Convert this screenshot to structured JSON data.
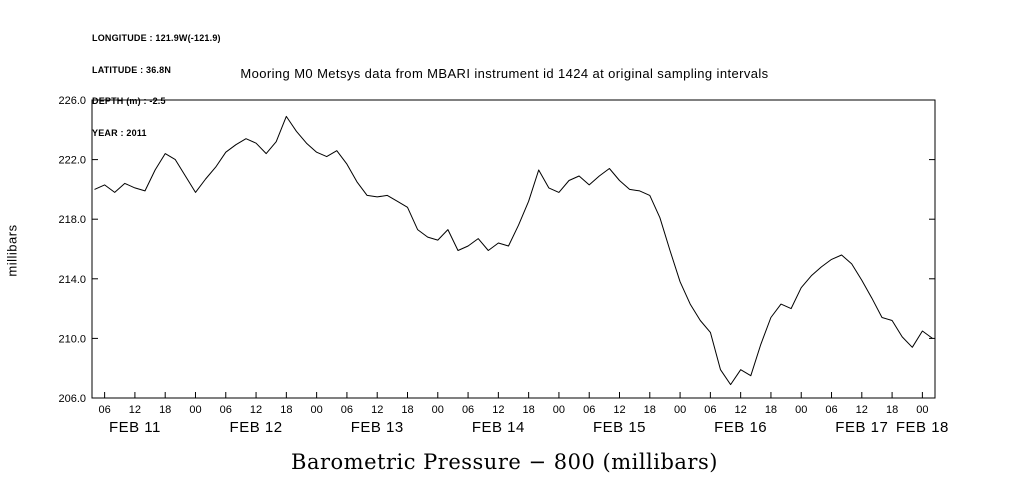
{
  "meta": {
    "longitude": "LONGITUDE : 121.9W(-121.9)",
    "latitude": "LATITUDE : 36.8N",
    "depth": "DEPTH (m) : -2.5",
    "year": "YEAR : 2011"
  },
  "title": "Mooring M0 Metsys data from MBARI instrument id 1424 at original sampling intervals",
  "y_axis_label": "millibars",
  "bottom_title": "Barometric Pressure − 800 (millibars)",
  "chart_data": {
    "type": "line",
    "title": "Mooring M0 Metsys data from MBARI instrument id 1424 at original sampling intervals",
    "xlabel": "",
    "ylabel": "millibars",
    "bottom_label": "Barometric Pressure − 800 (millibars)",
    "line_color": "#000000",
    "grid": false,
    "legend": "none",
    "ylim": [
      206.0,
      226.0
    ],
    "y_ticks": [
      226.0,
      222.0,
      218.0,
      214.0,
      210.0,
      206.0
    ],
    "x_unit": "hours since 2011-02-11 00:00",
    "x_hours_start": 3.5,
    "x_hours_end": 170.5,
    "x_tick_interval_hours": 6,
    "x_tick_labels_cycle": [
      "00",
      "06",
      "12",
      "18"
    ],
    "day_labels": [
      "FEB 11",
      "FEB 12",
      "FEB 13",
      "FEB 14",
      "FEB 15",
      "FEB 16",
      "FEB 17",
      "FEB 18"
    ],
    "x": [
      4,
      6,
      8,
      10,
      12,
      14,
      16,
      18,
      20,
      22,
      24,
      26,
      28,
      30,
      32,
      34,
      36,
      38,
      40,
      42,
      44,
      46,
      48,
      50,
      52,
      54,
      56,
      58,
      60,
      62,
      64,
      66,
      68,
      70,
      72,
      74,
      76,
      78,
      80,
      82,
      84,
      86,
      88,
      90,
      92,
      94,
      96,
      98,
      100,
      102,
      104,
      106,
      108,
      110,
      112,
      114,
      116,
      118,
      120,
      122,
      124,
      126,
      128,
      130,
      132,
      134,
      136,
      138,
      140,
      142,
      144,
      146,
      148,
      150,
      152,
      154,
      156,
      158,
      160,
      162,
      164,
      166,
      168,
      170
    ],
    "values": [
      220.0,
      220.3,
      219.8,
      220.4,
      220.1,
      219.9,
      221.3,
      222.4,
      222.0,
      220.9,
      219.8,
      220.7,
      221.5,
      222.5,
      223.0,
      223.4,
      223.1,
      222.4,
      223.2,
      224.9,
      223.9,
      223.1,
      222.5,
      222.2,
      222.6,
      221.7,
      220.5,
      219.6,
      219.5,
      219.6,
      219.2,
      218.8,
      217.3,
      216.8,
      216.6,
      217.3,
      215.9,
      216.2,
      216.7,
      215.9,
      216.4,
      216.2,
      217.6,
      219.2,
      221.3,
      220.1,
      219.8,
      220.6,
      220.9,
      220.3,
      220.9,
      221.4,
      220.6,
      220.0,
      219.9,
      219.6,
      218.1,
      215.9,
      213.8,
      212.3,
      211.2,
      210.4,
      207.9,
      206.9,
      207.9,
      207.5,
      209.6,
      211.4,
      212.3,
      212.0,
      213.4,
      214.2,
      214.8,
      215.3,
      215.6,
      215.0,
      213.9,
      212.7,
      211.4,
      211.2,
      210.1,
      209.4,
      210.5,
      210.0
    ]
  }
}
